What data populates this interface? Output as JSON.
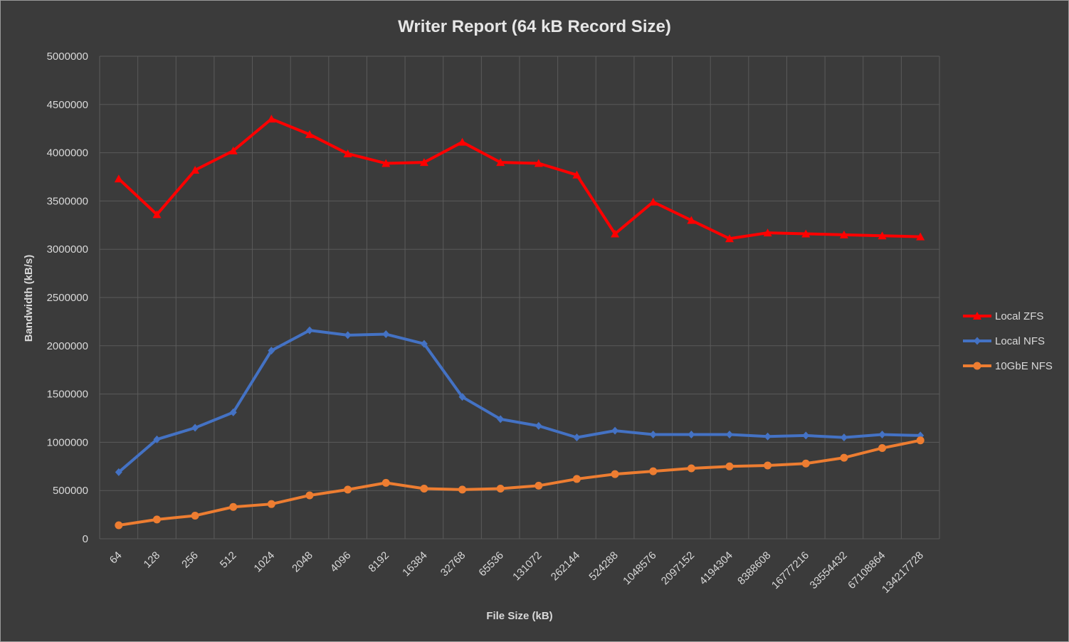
{
  "chart_data": {
    "type": "line",
    "title": "Writer Report (64 kB Record Size)",
    "xlabel": "File Size (kB)",
    "ylabel": "Bandwidth (kB/s)",
    "ylim": [
      0,
      5000000
    ],
    "yticks": [
      "0",
      "500000",
      "1000000",
      "1500000",
      "2000000",
      "2500000",
      "3000000",
      "3500000",
      "4000000",
      "4500000",
      "5000000"
    ],
    "categories": [
      "64",
      "128",
      "256",
      "512",
      "1024",
      "2048",
      "4096",
      "8192",
      "16384",
      "32768",
      "65536",
      "131072",
      "262144",
      "524288",
      "1048576",
      "2097152",
      "4194304",
      "8388608",
      "16777216",
      "33554432",
      "67108864",
      "134217728"
    ],
    "grid": true,
    "legend_position": "right",
    "series": [
      {
        "name": "Local ZFS",
        "color": "#ff0000",
        "marker": "triangle",
        "values": [
          3730000,
          3360000,
          3820000,
          4020000,
          4350000,
          4190000,
          3990000,
          3890000,
          3900000,
          4110000,
          3900000,
          3890000,
          3770000,
          3160000,
          3490000,
          3300000,
          3110000,
          3170000,
          3160000,
          3150000,
          3140000,
          3130000
        ]
      },
      {
        "name": "Local NFS",
        "color": "#4472c4",
        "marker": "diamond",
        "values": [
          690000,
          1030000,
          1150000,
          1310000,
          1950000,
          2160000,
          2110000,
          2120000,
          2020000,
          1470000,
          1240000,
          1170000,
          1050000,
          1120000,
          1080000,
          1080000,
          1080000,
          1060000,
          1070000,
          1050000,
          1080000,
          1070000
        ]
      },
      {
        "name": "10GbE NFS",
        "color": "#ed7d31",
        "marker": "circle",
        "values": [
          140000,
          200000,
          240000,
          330000,
          360000,
          450000,
          510000,
          580000,
          520000,
          510000,
          520000,
          550000,
          620000,
          670000,
          700000,
          730000,
          750000,
          760000,
          780000,
          840000,
          940000,
          1020000
        ]
      }
    ]
  }
}
